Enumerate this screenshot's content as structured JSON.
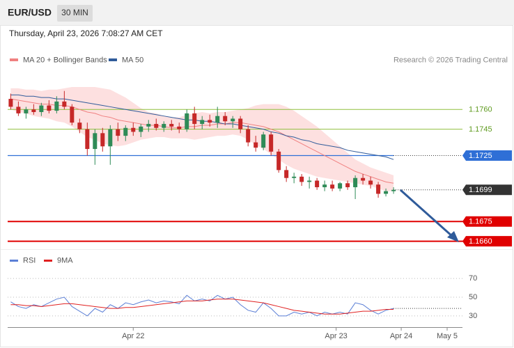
{
  "header": {
    "symbol": "EUR/USD",
    "timeframe": "30 MIN",
    "timestamp": "Thursday, April 23, 2026 7:08:27 AM CET"
  },
  "chart_data": [
    {
      "type": "candlestick",
      "credit": "Research © 2026 Trading Central",
      "up_color": "#2e8b57",
      "down_color": "#c62828",
      "candles": [
        [
          1.1768,
          1.1772,
          1.176,
          1.1762
        ],
        [
          1.1762,
          1.1766,
          1.1755,
          1.1757
        ],
        [
          1.1757,
          1.1762,
          1.1753,
          1.176
        ],
        [
          1.176,
          1.1764,
          1.1756,
          1.1758
        ],
        [
          1.1758,
          1.1765,
          1.1755,
          1.1763
        ],
        [
          1.1763,
          1.1767,
          1.1757,
          1.1759
        ],
        [
          1.1759,
          1.177,
          1.1757,
          1.1766
        ],
        [
          1.1766,
          1.1774,
          1.176,
          1.1762
        ],
        [
          1.1762,
          1.1764,
          1.1748,
          1.175
        ],
        [
          1.175,
          1.1753,
          1.1742,
          1.1745
        ],
        [
          1.1745,
          1.175,
          1.1725,
          1.173
        ],
        [
          1.173,
          1.1745,
          1.1718,
          1.1742
        ],
        [
          1.1742,
          1.1746,
          1.1728,
          1.1732
        ],
        [
          1.1732,
          1.1748,
          1.1718,
          1.1745
        ],
        [
          1.1745,
          1.175,
          1.1736,
          1.174
        ],
        [
          1.174,
          1.1748,
          1.1736,
          1.1746
        ],
        [
          1.1746,
          1.175,
          1.174,
          1.1743
        ],
        [
          1.1743,
          1.1749,
          1.1739,
          1.1747
        ],
        [
          1.1747,
          1.1752,
          1.1743,
          1.1749
        ],
        [
          1.1749,
          1.1753,
          1.1744,
          1.1746
        ],
        [
          1.1746,
          1.1751,
          1.1743,
          1.1749
        ],
        [
          1.1749,
          1.1752,
          1.1744,
          1.1747
        ],
        [
          1.1747,
          1.175,
          1.1742,
          1.1745
        ],
        [
          1.1745,
          1.176,
          1.1743,
          1.1757
        ],
        [
          1.1757,
          1.1762,
          1.1745,
          1.1749
        ],
        [
          1.1749,
          1.1755,
          1.1745,
          1.1752
        ],
        [
          1.1752,
          1.1756,
          1.1747,
          1.175
        ],
        [
          1.175,
          1.1762,
          1.1746,
          1.1755
        ],
        [
          1.1755,
          1.1758,
          1.1748,
          1.1751
        ],
        [
          1.1751,
          1.1755,
          1.1746,
          1.1753
        ],
        [
          1.1753,
          1.1755,
          1.1742,
          1.1745
        ],
        [
          1.1745,
          1.1748,
          1.1732,
          1.1735
        ],
        [
          1.1735,
          1.174,
          1.1728,
          1.1731
        ],
        [
          1.1731,
          1.1743,
          1.1729,
          1.1741
        ],
        [
          1.1741,
          1.1743,
          1.1725,
          1.1728
        ],
        [
          1.1728,
          1.173,
          1.1712,
          1.1714
        ],
        [
          1.1714,
          1.1717,
          1.1705,
          1.1708
        ],
        [
          1.1708,
          1.1712,
          1.1704,
          1.1709
        ],
        [
          1.1709,
          1.1711,
          1.1702,
          1.1705
        ],
        [
          1.1705,
          1.1709,
          1.17,
          1.1706
        ],
        [
          1.1706,
          1.1708,
          1.1699,
          1.1701
        ],
        [
          1.1701,
          1.1706,
          1.1698,
          1.1703
        ],
        [
          1.1703,
          1.1706,
          1.1698,
          1.17
        ],
        [
          1.17,
          1.1705,
          1.1698,
          1.1704
        ],
        [
          1.1704,
          1.1706,
          1.1699,
          1.1701
        ],
        [
          1.1701,
          1.171,
          1.1692,
          1.1708
        ],
        [
          1.1708,
          1.1711,
          1.1703,
          1.1706
        ],
        [
          1.1706,
          1.1709,
          1.17,
          1.1703
        ],
        [
          1.1703,
          1.1705,
          1.1693,
          1.1696
        ],
        [
          1.1696,
          1.17,
          1.1694,
          1.1698
        ],
        [
          1.1698,
          1.1701,
          1.1696,
          1.1699
        ]
      ],
      "band": {
        "color": "#fcd5d5",
        "upper": [
          1.1776,
          1.1776,
          1.1775,
          1.1775,
          1.1774,
          1.1775,
          1.1775,
          1.1776,
          1.1777,
          1.1777,
          1.1777,
          1.1777,
          1.1776,
          1.1775,
          1.1772,
          1.1769,
          1.1765,
          1.1761,
          1.1758,
          1.1757,
          1.1755,
          1.1754,
          1.1754,
          1.1756,
          1.1757,
          1.1758,
          1.1757,
          1.1758,
          1.1758,
          1.1759,
          1.176,
          1.1761,
          1.1763,
          1.1764,
          1.1764,
          1.1764,
          1.1762,
          1.1759,
          1.1755,
          1.1751,
          1.1747,
          1.1742,
          1.1737,
          1.1732,
          1.1727,
          1.1722,
          1.1719,
          1.1716,
          1.1714,
          1.1712,
          1.171
        ],
        "lower": [
          1.176,
          1.1758,
          1.1757,
          1.1755,
          1.1754,
          1.1753,
          1.1751,
          1.175,
          1.1747,
          1.1743,
          1.1739,
          1.1737,
          1.1734,
          1.1733,
          1.1732,
          1.1733,
          1.1735,
          1.1737,
          1.1738,
          1.1739,
          1.1739,
          1.1738,
          1.1738,
          1.1738,
          1.1737,
          1.1738,
          1.1739,
          1.174,
          1.174,
          1.1741,
          1.174,
          1.1737,
          1.1733,
          1.173,
          1.1726,
          1.1722,
          1.1718,
          1.1715,
          1.1713,
          1.1711,
          1.1709,
          1.1708,
          1.1707,
          1.1706,
          1.1705,
          1.1704,
          1.1703,
          1.1702,
          1.17,
          1.1698,
          1.1698
        ]
      },
      "series": [
        {
          "name": "MA 20 + Bollinger Bands",
          "color": "#f08080",
          "values": [
            1.1768,
            1.1767,
            1.1766,
            1.1765,
            1.1764,
            1.1764,
            1.1763,
            1.1763,
            1.1762,
            1.176,
            1.1758,
            1.1757,
            1.1755,
            1.1754,
            1.1752,
            1.1751,
            1.175,
            1.1749,
            1.1748,
            1.1748,
            1.1747,
            1.1746,
            1.1746,
            1.1747,
            1.1747,
            1.1748,
            1.1748,
            1.1749,
            1.1749,
            1.175,
            1.175,
            1.1749,
            1.1748,
            1.1747,
            1.1745,
            1.1743,
            1.174,
            1.1737,
            1.1734,
            1.1731,
            1.1728,
            1.1725,
            1.1722,
            1.1719,
            1.1716,
            1.1713,
            1.1711,
            1.1709,
            1.1707,
            1.1705,
            1.1704
          ]
        },
        {
          "name": "MA 50",
          "color": "#2f5b9a",
          "values": [
            1.1771,
            1.1771,
            1.177,
            1.177,
            1.1769,
            1.1769,
            1.1768,
            1.1768,
            1.1767,
            1.1766,
            1.1765,
            1.1764,
            1.1763,
            1.1762,
            1.1761,
            1.176,
            1.1759,
            1.1758,
            1.1757,
            1.1756,
            1.1755,
            1.1754,
            1.1753,
            1.1752,
            1.1752,
            1.1751,
            1.1751,
            1.175,
            1.1749,
            1.1749,
            1.1748,
            1.1747,
            1.1746,
            1.1745,
            1.1743,
            1.1742,
            1.174,
            1.1739,
            1.1737,
            1.1736,
            1.1734,
            1.1733,
            1.1732,
            1.1731,
            1.1729,
            1.1728,
            1.1727,
            1.1726,
            1.1725,
            1.1724,
            1.1722
          ]
        }
      ],
      "levels": [
        {
          "value": 1.176,
          "label": "1.1760",
          "color": "#8fbf3f",
          "text_color": "#5e9a1e",
          "line": "solid",
          "box": false
        },
        {
          "value": 1.1745,
          "label": "1.1745",
          "color": "#8fbf3f",
          "text_color": "#5e9a1e",
          "line": "solid",
          "box": false
        },
        {
          "value": 1.1725,
          "label": "1.1725",
          "color": "#2f6fd6",
          "text_color": "#ffffff",
          "line": "solid-dotted",
          "box": true
        },
        {
          "value": 1.1699,
          "label": "1.1699",
          "color": "#333333",
          "text_color": "#ffffff",
          "line": "dotted",
          "box": true
        },
        {
          "value": 1.1675,
          "label": "1.1675",
          "color": "#e00000",
          "text_color": "#ffffff",
          "line": "solid",
          "box": true
        },
        {
          "value": 1.166,
          "label": "1.1660",
          "color": "#e00000",
          "text_color": "#ffffff",
          "line": "solid",
          "box": true
        }
      ],
      "ylim": [
        1.1654,
        1.1824
      ],
      "xlim": [
        -0.4,
        59
      ],
      "xticks": [
        {
          "value": 16,
          "label": "Apr 22"
        },
        {
          "value": 42.5,
          "label": "Apr 23"
        },
        {
          "value": 51,
          "label": "Apr 24"
        },
        {
          "value": 57,
          "label": "May 5"
        }
      ]
    },
    {
      "type": "line",
      "series": [
        {
          "name": "RSI",
          "color": "#5b7fd6",
          "values": [
            45,
            40,
            38,
            42,
            40,
            44,
            48,
            50,
            40,
            35,
            30,
            38,
            34,
            42,
            38,
            44,
            42,
            45,
            47,
            44,
            46,
            45,
            43,
            52,
            46,
            48,
            46,
            52,
            48,
            50,
            42,
            36,
            34,
            44,
            38,
            30,
            30,
            34,
            32,
            34,
            30,
            34,
            32,
            34,
            32,
            44,
            42,
            36,
            32,
            36,
            38
          ]
        },
        {
          "name": "9MA",
          "color": "#e02020",
          "values": [
            42,
            42,
            41,
            41,
            40,
            41,
            42,
            43,
            43,
            42,
            41,
            40,
            39,
            38,
            38,
            39,
            39,
            40,
            41,
            42,
            43,
            44,
            45,
            46,
            46,
            46,
            47,
            48,
            48,
            48,
            47,
            46,
            45,
            44,
            42,
            40,
            38,
            36,
            35,
            34,
            33,
            32,
            32,
            32,
            33,
            34,
            35,
            35,
            36,
            37,
            37
          ]
        }
      ],
      "ylim": [
        18,
        85
      ],
      "yticks": [
        70,
        50,
        30
      ],
      "grid": true
    }
  ]
}
